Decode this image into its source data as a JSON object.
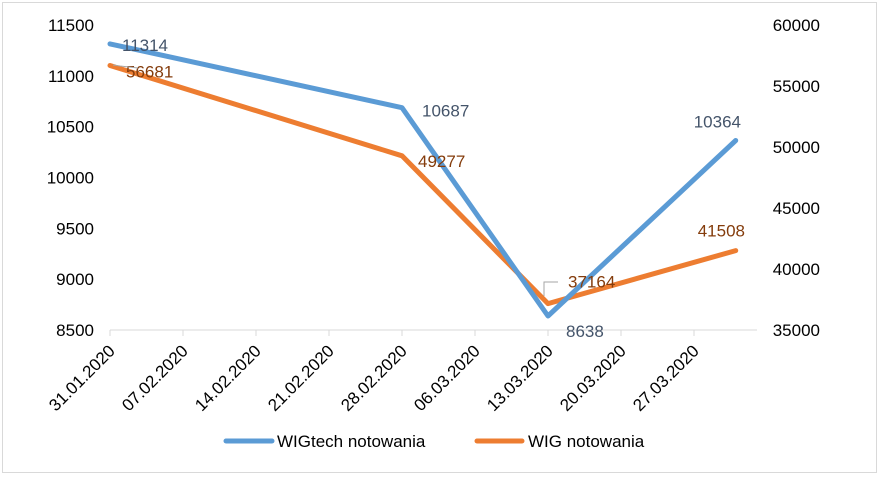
{
  "chart_data": {
    "type": "line",
    "title": "",
    "x_dates": [
      "31.01.2020",
      "28.02.2020",
      "13.03.2020",
      "31.03.2020"
    ],
    "x_tick_labels": [
      "31.01.2020",
      "07.02.2020",
      "14.02.2020",
      "21.02.2020",
      "28.02.2020",
      "06.03.2020",
      "13.03.2020",
      "20.03.2020",
      "27.03.2020"
    ],
    "y_left": {
      "min": 8500,
      "max": 11500,
      "ticks": [
        "8500",
        "9000",
        "9500",
        "10000",
        "10500",
        "11000",
        "11500"
      ]
    },
    "y_right": {
      "min": 35000,
      "max": 60000,
      "ticks": [
        "35000",
        "40000",
        "45000",
        "50000",
        "55000",
        "60000"
      ]
    },
    "grid": false,
    "legend_position": "bottom",
    "series": [
      {
        "name": "WIGtech notowania",
        "axis": "left",
        "color": "#5b9bd5",
        "label_color": "#44546a",
        "values": [
          11314,
          10687,
          8638,
          10364
        ],
        "labels": [
          "11314",
          "10687",
          "8638",
          "10364"
        ]
      },
      {
        "name": "WIG notowania",
        "axis": "right",
        "color": "#ed7d31",
        "label_color": "#843c0c",
        "values": [
          56681,
          49277,
          37164,
          41508
        ],
        "labels": [
          "56681",
          "49277",
          "37164",
          "41508"
        ]
      }
    ]
  }
}
